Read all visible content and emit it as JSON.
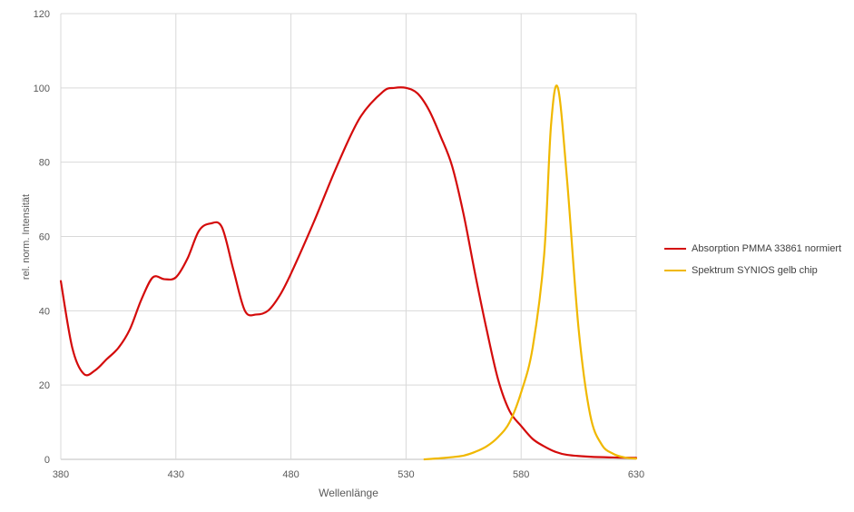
{
  "chart_data": {
    "type": "line",
    "title": "",
    "xlabel": "Wellenlänge",
    "ylabel": "rel. norm. Intensität",
    "xlim": [
      380,
      630
    ],
    "ylim": [
      0,
      120
    ],
    "x_ticks": [
      "380",
      "430",
      "480",
      "530",
      "580",
      "630"
    ],
    "y_ticks": [
      "0",
      "20",
      "40",
      "60",
      "80",
      "100",
      "120"
    ],
    "grid": true,
    "legend_position": "right",
    "series": [
      {
        "name": "Absorption PMMA 33861 normiert",
        "color": "#d40b0b",
        "x": [
          380,
          385,
          390,
          395,
          400,
          405,
          410,
          415,
          420,
          425,
          430,
          435,
          440,
          445,
          450,
          455,
          460,
          465,
          470,
          475,
          480,
          490,
          500,
          510,
          520,
          525,
          530,
          535,
          540,
          545,
          550,
          555,
          560,
          565,
          570,
          575,
          580,
          585,
          590,
          595,
          600,
          610,
          620,
          630
        ],
        "y": [
          48,
          30,
          23,
          24,
          27,
          30,
          35,
          43,
          49,
          48.5,
          49,
          54,
          61.5,
          63.5,
          62.5,
          51,
          40,
          39,
          40,
          44,
          50,
          64,
          79,
          92,
          99,
          100,
          100,
          98.5,
          94,
          87,
          79,
          66,
          50,
          35,
          21.5,
          13,
          9,
          5.5,
          3.5,
          2,
          1.2,
          0.7,
          0.5,
          0.4
        ]
      },
      {
        "name": "Spektrum SYNIOS gelb chip",
        "color": "#f0b800",
        "x": [
          538,
          545,
          550,
          555,
          560,
          565,
          570,
          575,
          580,
          585,
          590,
          593,
          596,
          600,
          605,
          610,
          615,
          620,
          625,
          630
        ],
        "y": [
          0,
          0.3,
          0.6,
          1,
          2,
          3.5,
          6,
          10,
          18,
          30,
          55,
          90,
          100,
          75,
          35,
          12,
          4,
          1.5,
          0.5,
          0.2
        ]
      }
    ]
  }
}
